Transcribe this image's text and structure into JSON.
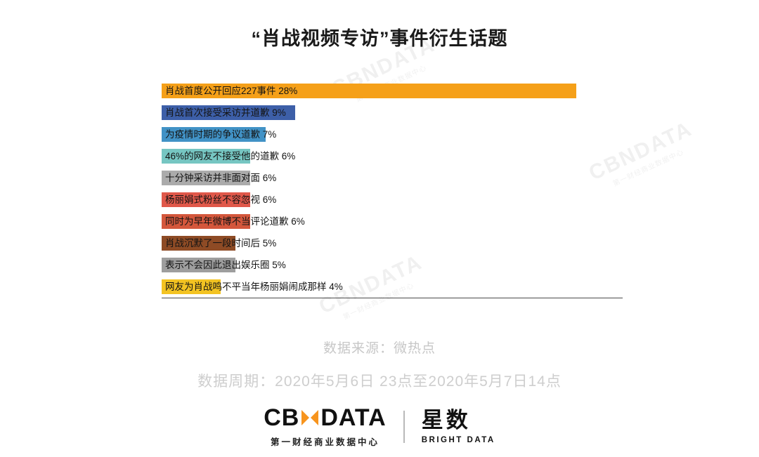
{
  "title": "“肖战视频专访”事件衍生话题",
  "chart_data": {
    "type": "bar",
    "orientation": "horizontal",
    "unit": "%",
    "categories": [
      "肖战首度公开回应227事件",
      "肖战首次接受采访并道歉",
      "为疫情时期的争议道歉",
      "46%的网友不接受他的道歉",
      "十分钟采访并非面对面",
      "杨丽娟式粉丝不容忽视",
      "同时为早年微博不当评论道歉",
      "肖战沉默了一段时间后",
      "表示不会因此退出娱乐圈",
      "网友为肖战鸣不平当年杨丽娟闹成那样"
    ],
    "values": [
      28,
      9,
      7,
      6,
      6,
      6,
      6,
      5,
      5,
      4
    ],
    "colors": [
      "#F5A019",
      "#3D5FA8",
      "#4192C6",
      "#76C6C2",
      "#ABABAB",
      "#E0584A",
      "#D4573C",
      "#8E4B25",
      "#9E9E9E",
      "#F3C322"
    ],
    "title": "“肖战视频专访”事件衍生话题",
    "xlabel": "",
    "ylabel": "",
    "xlim": [
      0,
      31
    ],
    "grid": false,
    "legend": "none"
  },
  "source": {
    "line1": "数据来源：微热点",
    "line2": "数据周期：2020年5月6日 23点至2020年5月7日14点"
  },
  "footer": {
    "cbn_left": "CB",
    "cbn_right": "DATA",
    "cbn_sub": "第一财经商业数据中心",
    "brand_cn": "星数",
    "brand_en": "BRIGHT DATA"
  },
  "watermark": {
    "text": "CBNDATA",
    "sub": "第一财经商业数据中心"
  }
}
